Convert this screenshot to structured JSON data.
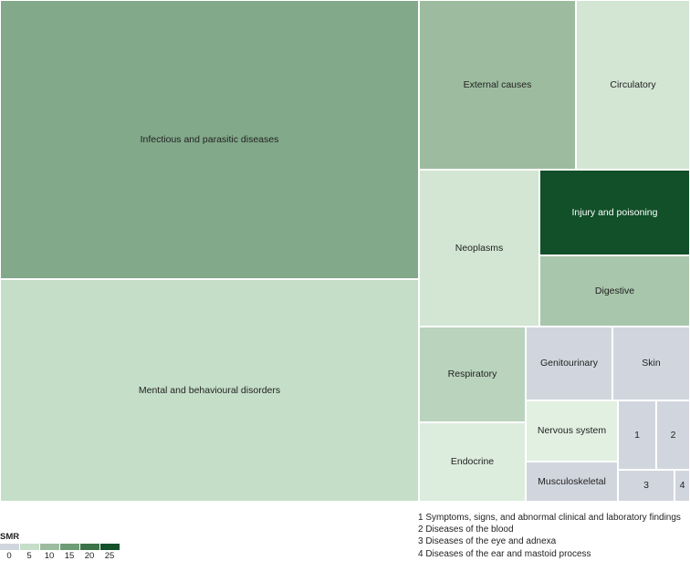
{
  "chart_data": {
    "type": "treemap",
    "color_metric": "SMR",
    "cells": [
      {
        "label": "Infectious and parasitic diseases",
        "smr": 11
      },
      {
        "label": "Mental and behavioural disorders",
        "smr": 6
      },
      {
        "label": "External causes",
        "smr": 9
      },
      {
        "label": "Circulatory",
        "smr": 5
      },
      {
        "label": "Neoplasms",
        "smr": 5
      },
      {
        "label": "Injury and poisoning",
        "smr": 25
      },
      {
        "label": "Digestive",
        "smr": 8
      },
      {
        "label": "Respiratory",
        "smr": 7
      },
      {
        "label": "Genitourinary",
        "smr": 1
      },
      {
        "label": "Skin",
        "smr": 1
      },
      {
        "label": "Endocrine",
        "smr": 4
      },
      {
        "label": "Nervous system",
        "smr": 4
      },
      {
        "label": "Musculoskeletal",
        "smr": 1
      },
      {
        "label": "1",
        "smr": 1
      },
      {
        "label": "2",
        "smr": 1
      },
      {
        "label": "3",
        "smr": 1
      },
      {
        "label": "4",
        "smr": 1
      }
    ],
    "legend": {
      "title": "SMR",
      "ticks": [
        "0",
        "5",
        "10",
        "15",
        "20",
        "25"
      ],
      "colors": [
        "#d1d6de",
        "#c5dec8",
        "#9dbc9f",
        "#6e9c76",
        "#3b7248",
        "#115029"
      ]
    },
    "footnotes": [
      "1 Symptoms, signs, and abnormal clinical and laboratory findings",
      "2 Diseases of the blood",
      "3 Diseases of the eye and adnexa",
      "4 Diseases of the ear and mastoid process"
    ],
    "colors": {
      "Infectious and parasitic diseases": "#82a98a",
      "Mental and behavioural disorders": "#c5dec8",
      "External causes": "#9dbc9f",
      "Circulatory": "#d2e6d3",
      "Neoplasms": "#d2e6d3",
      "Injury and poisoning": "#115029",
      "Digestive": "#a8c6ab",
      "Respiratory": "#b9d3bc",
      "Genitourinary": "#d1d6de",
      "Skin": "#d1d6de",
      "Endocrine": "#dcecdd",
      "Nervous system": "#e2f0e2",
      "Musculoskeletal": "#d1d6de",
      "1": "#d1d6de",
      "2": "#d1d6de",
      "3": "#d1d6de",
      "4": "#d1d6de"
    },
    "light_text_labels": [
      "Injury and poisoning"
    ]
  }
}
